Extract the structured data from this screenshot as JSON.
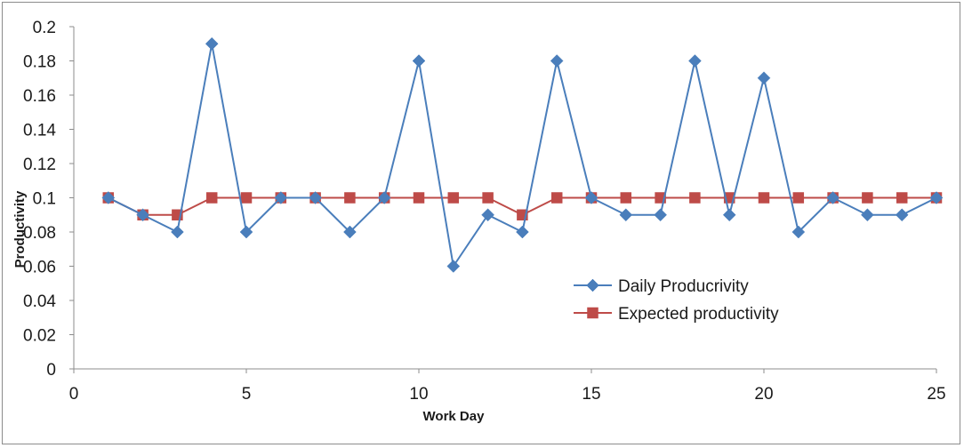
{
  "chart_data": {
    "type": "line",
    "title": "",
    "xlabel": "Work Day",
    "ylabel": "Productivity",
    "xlim": [
      0,
      25
    ],
    "ylim": [
      0,
      0.2
    ],
    "x_ticks": [
      0,
      5,
      10,
      15,
      20,
      25
    ],
    "x_tick_labels": [
      "0",
      "5",
      "10",
      "15",
      "20",
      "25"
    ],
    "y_ticks": [
      0,
      0.02,
      0.04,
      0.06,
      0.08,
      0.1,
      0.12,
      0.14,
      0.16,
      0.18,
      0.2
    ],
    "y_tick_labels": [
      "0",
      "0.02",
      "0.04",
      "0.06",
      "0.08",
      "0.1",
      "0.12",
      "0.14",
      "0.16",
      "0.18",
      "0.2"
    ],
    "grid": false,
    "legend_position": "center-right",
    "x": [
      1,
      2,
      3,
      4,
      5,
      6,
      7,
      8,
      9,
      10,
      11,
      12,
      13,
      14,
      15,
      16,
      17,
      18,
      19,
      20,
      21,
      22,
      23,
      24,
      25
    ],
    "series": [
      {
        "name": "Daily Producrivity",
        "color": "#4a7ebb",
        "marker": "diamond",
        "values": [
          0.1,
          0.09,
          0.08,
          0.19,
          0.08,
          0.1,
          0.1,
          0.08,
          0.1,
          0.18,
          0.06,
          0.09,
          0.08,
          0.18,
          0.1,
          0.09,
          0.09,
          0.18,
          0.09,
          0.17,
          0.08,
          0.1,
          0.09,
          0.09,
          0.1
        ]
      },
      {
        "name": "Expected productivity",
        "color": "#be4b48",
        "marker": "square",
        "values": [
          0.1,
          0.09,
          0.09,
          0.1,
          0.1,
          0.1,
          0.1,
          0.1,
          0.1,
          0.1,
          0.1,
          0.1,
          0.09,
          0.1,
          0.1,
          0.1,
          0.1,
          0.1,
          0.1,
          0.1,
          0.1,
          0.1,
          0.1,
          0.1,
          0.1
        ]
      }
    ]
  }
}
